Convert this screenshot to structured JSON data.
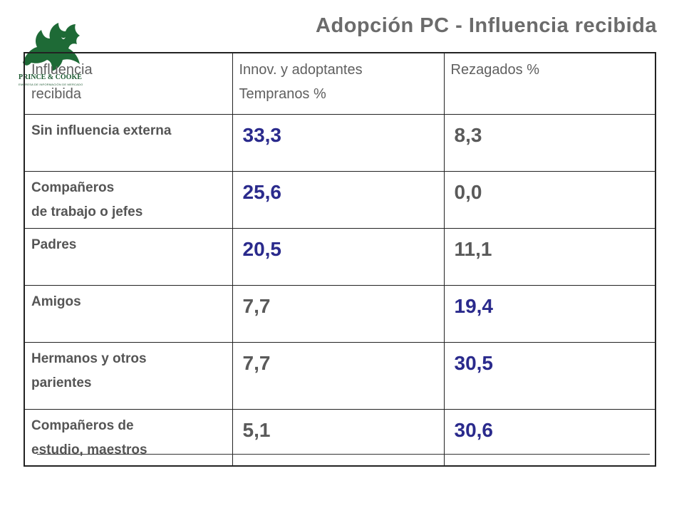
{
  "slide": {
    "title": "Adopción PC - Influencia recibida",
    "logo_text": "PRINCE & COOKE",
    "logo_tagline": "EMPRESA DE INFORMACIÓN DE MERCADO",
    "colors": {
      "title": "#6b6b6b",
      "highlight": "#2a2a8c",
      "label": "#555555",
      "logo": "#1e5a32"
    }
  },
  "table": {
    "headers": {
      "col1": [
        "Influencia",
        "recibida"
      ],
      "col2": [
        "Innov. y adoptantes",
        "Tempranos %"
      ],
      "col3": [
        "Rezagados %"
      ]
    },
    "rows": [
      {
        "label": [
          "Sin influencia externa"
        ],
        "innov": "33,3",
        "rez": "8,3"
      },
      {
        "label": [
          "Compañeros",
          "de trabajo o jefes"
        ],
        "innov": "25,6",
        "rez": "0,0"
      },
      {
        "label": [
          "Padres"
        ],
        "innov": "20,5",
        "rez": "11,1"
      },
      {
        "label": [
          "Amigos"
        ],
        "innov": "7,7",
        "rez": "19,4"
      },
      {
        "label": [
          "Hermanos y otros",
          "parientes"
        ],
        "innov": "7,7",
        "rez": "30,5"
      },
      {
        "label": [
          "Compañeros de",
          "estudio, maestros"
        ],
        "innov": "5,1",
        "rez": "30,6"
      }
    ]
  }
}
